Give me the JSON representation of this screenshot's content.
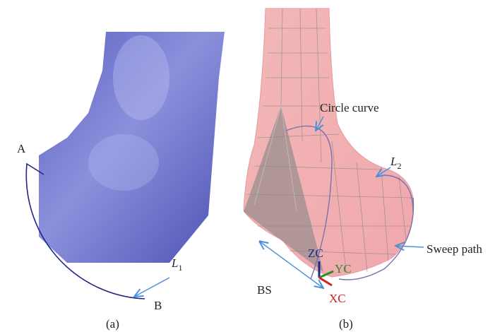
{
  "panel_a": {
    "label": "(a)",
    "point_a": "A",
    "point_b": "B",
    "length": {
      "letter": "L",
      "subscript": "1"
    }
  },
  "panel_b": {
    "label": "(b)",
    "circle_curve": "Circle curve",
    "length": {
      "letter": "L",
      "subscript": "2"
    },
    "sweep_path": "Sweep path",
    "bs": "BS",
    "axes": {
      "z": "ZC",
      "y": "YC",
      "x": "XC"
    }
  }
}
